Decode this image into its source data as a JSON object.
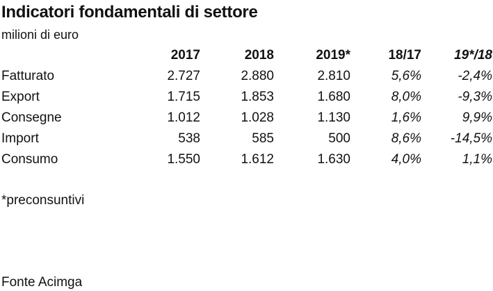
{
  "title": "Indicatori fondamentali di settore",
  "subtitle": "milioni di euro",
  "table": {
    "headers": [
      "",
      "2017",
      "2018",
      "2019*",
      "18/17",
      "19*/18"
    ],
    "rows": [
      {
        "label": "Fatturato",
        "y2017": "2.727",
        "y2018": "2.880",
        "y2019": "2.810",
        "var1817": "5,6%",
        "var1918": "-2,4%"
      },
      {
        "label": "Export",
        "y2017": "1.715",
        "y2018": "1.853",
        "y2019": "1.680",
        "var1817": "8,0%",
        "var1918": "-9,3%"
      },
      {
        "label": "Consegne",
        "y2017": "1.012",
        "y2018": "1.028",
        "y2019": "1.130",
        "var1817": "1,6%",
        "var1918": "9,9%"
      },
      {
        "label": "Import",
        "y2017": "538",
        "y2018": "585",
        "y2019": "500",
        "var1817": "8,6%",
        "var1918": "-14,5%"
      },
      {
        "label": "Consumo",
        "y2017": "1.550",
        "y2018": "1.612",
        "y2019": "1.630",
        "var1817": "4,0%",
        "var1918": "1,1%"
      }
    ]
  },
  "footnote": "*preconsuntivi",
  "source": "Fonte Acimga"
}
